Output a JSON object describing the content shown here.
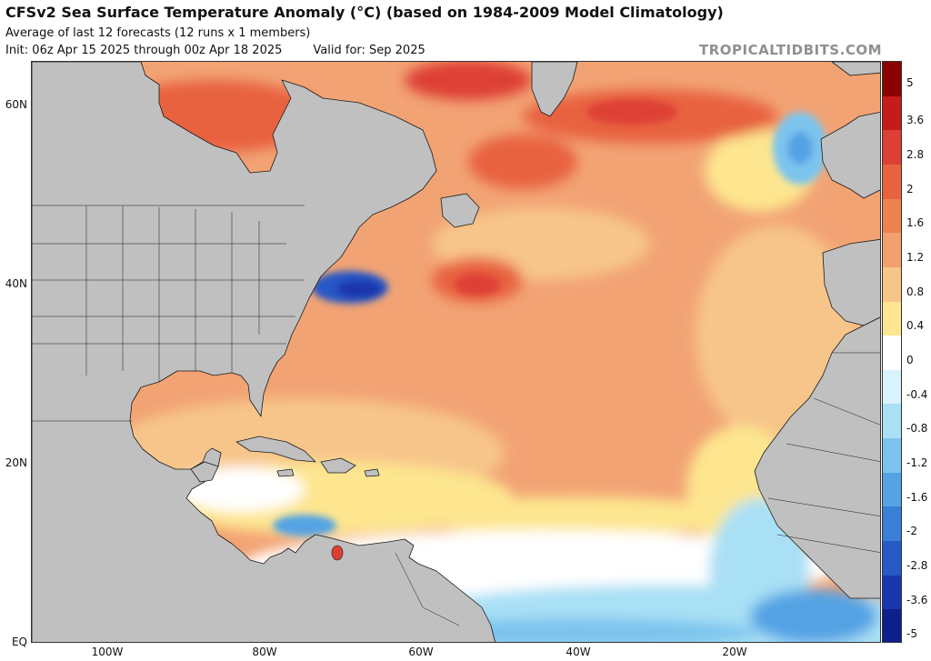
{
  "header": {
    "title": "CFSv2 Sea Surface Temperature Anomaly (°C) (based on 1984-2009 Model Climatology)",
    "subtitle": "Average of last 12 forecasts (12 runs x 1 members)",
    "init": "Init: 06z Apr 15 2025 through 00z Apr 18 2025",
    "valid": "Valid for: Sep 2025",
    "brand": "TROPICALTIDBITS.COM"
  },
  "map": {
    "lat_labels": [
      "60N",
      "40N",
      "20N",
      "EQ"
    ],
    "lon_labels": [
      "100W",
      "80W",
      "60W",
      "40W",
      "20W"
    ],
    "colors": {
      "land": "#c0c0c0",
      "coast": "#1a1a1a",
      "ocean_base": "#f2a374"
    }
  },
  "colorbar": {
    "labels": [
      "5",
      "3.6",
      "2.8",
      "2",
      "1.6",
      "1.2",
      "0.8",
      "0.4",
      "0",
      "-0.4",
      "-0.8",
      "-1.2",
      "-1.6",
      "-2",
      "-2.8",
      "-3.6",
      "-5"
    ],
    "colors": [
      "#8b0000",
      "#c61b1b",
      "#de3f34",
      "#e8623f",
      "#ef8250",
      "#f2a070",
      "#f7c58a",
      "#fde68f",
      "#ffffff",
      "#d8f3fb",
      "#a9e0f5",
      "#7cc4ee",
      "#55a3e4",
      "#3a7fd6",
      "#2559c6",
      "#1a36ae",
      "#0d1f8a"
    ]
  }
}
